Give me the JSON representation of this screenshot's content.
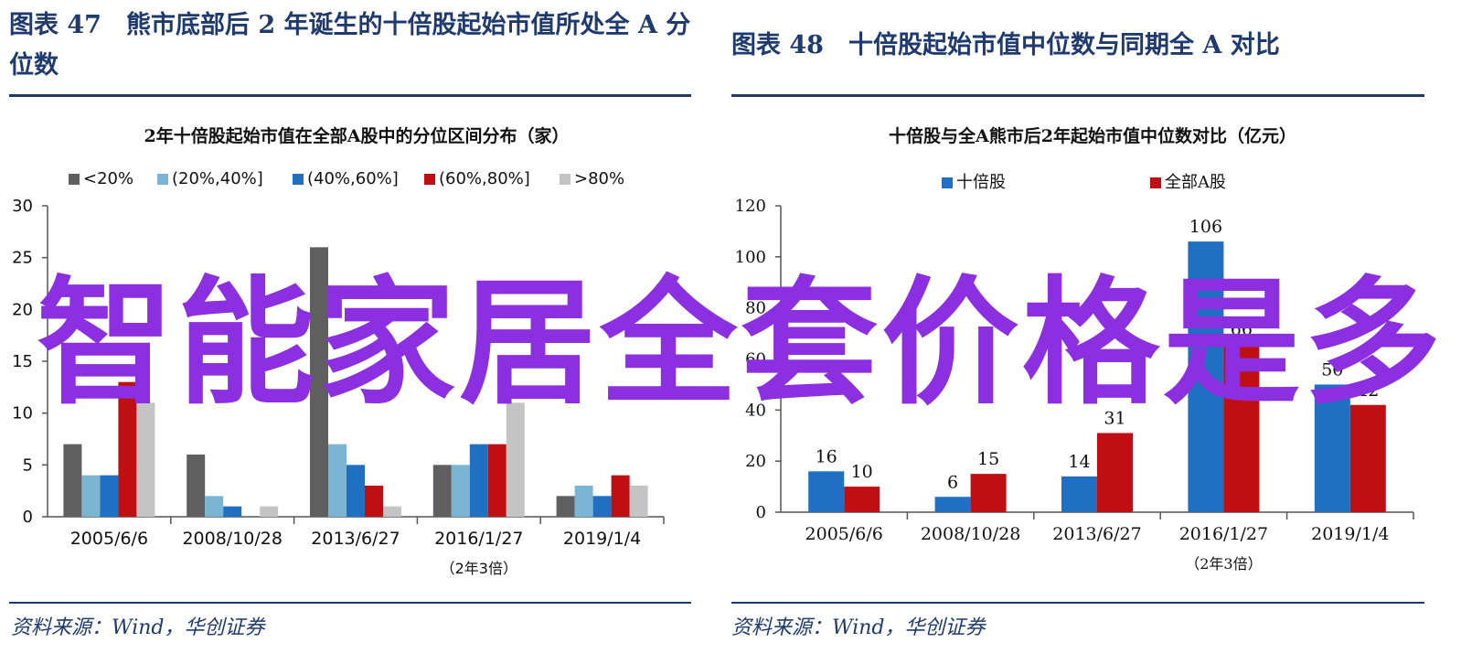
{
  "left_figure": {
    "title": "图表 47　熊市底部后 2 年诞生的十倍股起始市值所处全 A 分位数",
    "source": "资料来源：Wind，华创证券"
  },
  "right_figure": {
    "title": "图表 48　十倍股起始市值中位数与同期全 A 对比",
    "source": "资料来源：Wind，华创证券"
  },
  "watermark_text": "智能家居全套价格是多",
  "chart_data": [
    {
      "type": "bar",
      "title": "2年十倍股起始市值在全部A股中的分位区间分布（家）",
      "categories": [
        "2005/6/6",
        "2008/10/28",
        "2013/6/27",
        "2016/1/27",
        "2019/1/4"
      ],
      "category_note": {
        "index": 3,
        "text": "（2年3倍）"
      },
      "ylim": [
        0,
        30
      ],
      "yticks": [
        0,
        5,
        10,
        15,
        20,
        25,
        30
      ],
      "legend_position": "top",
      "grid": false,
      "series": [
        {
          "name": "<20%",
          "color": "#5f5f5f",
          "values": [
            7,
            6,
            26,
            5,
            2
          ]
        },
        {
          "name": "(20%,40%]",
          "color": "#7ab6d4",
          "values": [
            4,
            2,
            7,
            5,
            3
          ]
        },
        {
          "name": "(40%,60%]",
          "color": "#1f6fc2",
          "values": [
            4,
            1,
            5,
            7,
            2
          ]
        },
        {
          "name": "(60%,80%]",
          "color": "#c00f12",
          "values": [
            13,
            0,
            3,
            7,
            4
          ]
        },
        {
          "name": ">80%",
          "color": "#c4c4c4",
          "values": [
            11,
            1,
            1,
            11,
            3
          ]
        }
      ]
    },
    {
      "type": "bar",
      "title": "十倍股与全A熊市后2年起始市值中位数对比（亿元）",
      "categories": [
        "2005/6/6",
        "2008/10/28",
        "2013/6/27",
        "2016/1/27",
        "2019/1/4"
      ],
      "category_note": {
        "index": 3,
        "text": "（2年3倍）"
      },
      "ylim": [
        0,
        120
      ],
      "yticks": [
        0,
        20,
        40,
        60,
        80,
        100,
        120
      ],
      "legend_position": "top",
      "grid": false,
      "series": [
        {
          "name": "十倍股",
          "color": "#1f6fc2",
          "values": [
            16,
            6,
            14,
            106,
            50
          ]
        },
        {
          "name": "全部A股",
          "color": "#c00f12",
          "values": [
            10,
            15,
            31,
            66,
            42
          ]
        }
      ],
      "data_labels": [
        [
          "16",
          "6",
          "14",
          "106",
          "50"
        ],
        [
          "10",
          "15",
          "31",
          "66",
          "42"
        ]
      ]
    }
  ]
}
